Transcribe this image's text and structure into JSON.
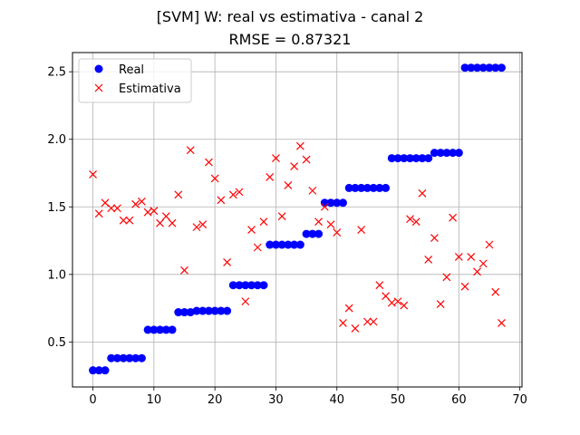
{
  "chart_data": {
    "type": "scatter",
    "title": "[SVM] W: real vs estimativa - canal 2",
    "subtitle": "RMSE = 0.87321",
    "xlabel": "",
    "ylabel": "",
    "xlim": [
      -3.35,
      70.35
    ],
    "ylim": [
      0.167,
      2.642
    ],
    "x_ticks": [
      0,
      10,
      20,
      30,
      40,
      50,
      60,
      70
    ],
    "y_ticks": [
      0.5,
      1.0,
      1.5,
      2.0,
      2.5
    ],
    "x_tick_labels": [
      "0",
      "10",
      "20",
      "30",
      "40",
      "50",
      "60",
      "70"
    ],
    "y_tick_labels": [
      "0.5",
      "1.0",
      "1.5",
      "2.0",
      "2.5"
    ],
    "grid": true,
    "legend_position": "top-left",
    "series": [
      {
        "name": "Real",
        "marker": "circle",
        "color": "#0000ff",
        "x": [
          0,
          1,
          2,
          3,
          4,
          5,
          6,
          7,
          8,
          9,
          10,
          11,
          12,
          13,
          14,
          15,
          16,
          17,
          18,
          19,
          20,
          21,
          22,
          23,
          24,
          25,
          26,
          27,
          28,
          29,
          30,
          31,
          32,
          33,
          34,
          35,
          36,
          37,
          38,
          39,
          40,
          41,
          42,
          43,
          44,
          45,
          46,
          47,
          48,
          49,
          50,
          51,
          52,
          53,
          54,
          55,
          56,
          57,
          58,
          59,
          60,
          61,
          62,
          63,
          64,
          65,
          66,
          67
        ],
        "values": [
          0.29,
          0.29,
          0.29,
          0.38,
          0.38,
          0.38,
          0.38,
          0.38,
          0.38,
          0.59,
          0.59,
          0.59,
          0.59,
          0.59,
          0.72,
          0.72,
          0.72,
          0.73,
          0.73,
          0.73,
          0.73,
          0.73,
          0.73,
          0.92,
          0.92,
          0.92,
          0.92,
          0.92,
          0.92,
          1.22,
          1.22,
          1.22,
          1.22,
          1.22,
          1.22,
          1.3,
          1.3,
          1.3,
          1.53,
          1.53,
          1.53,
          1.53,
          1.64,
          1.64,
          1.64,
          1.64,
          1.64,
          1.64,
          1.64,
          1.86,
          1.86,
          1.86,
          1.86,
          1.86,
          1.86,
          1.86,
          1.9,
          1.9,
          1.9,
          1.9,
          1.9,
          2.53,
          2.53,
          2.53,
          2.53,
          2.53,
          2.53,
          2.53
        ]
      },
      {
        "name": "Estimativa",
        "marker": "x",
        "color": "#ff0000",
        "x": [
          0,
          1,
          2,
          3,
          4,
          5,
          6,
          7,
          8,
          9,
          10,
          11,
          12,
          13,
          14,
          15,
          16,
          17,
          18,
          19,
          20,
          21,
          22,
          23,
          24,
          25,
          26,
          27,
          28,
          29,
          30,
          31,
          32,
          33,
          34,
          35,
          36,
          37,
          38,
          39,
          40,
          41,
          42,
          43,
          44,
          45,
          46,
          47,
          48,
          49,
          50,
          51,
          52,
          53,
          54,
          55,
          56,
          57,
          58,
          59,
          60,
          61,
          62,
          63,
          64,
          65,
          66,
          67
        ],
        "values": [
          1.74,
          1.45,
          1.53,
          1.49,
          1.49,
          1.4,
          1.4,
          1.52,
          1.54,
          1.46,
          1.47,
          1.38,
          1.43,
          1.38,
          1.59,
          1.03,
          1.92,
          1.35,
          1.37,
          1.83,
          1.71,
          1.55,
          1.09,
          1.59,
          1.61,
          0.8,
          1.33,
          1.2,
          1.39,
          1.72,
          1.86,
          1.43,
          1.66,
          1.8,
          1.95,
          1.85,
          1.62,
          1.39,
          1.5,
          1.37,
          1.31,
          0.64,
          0.75,
          0.6,
          1.33,
          0.65,
          0.65,
          0.92,
          0.84,
          0.79,
          0.8,
          0.77,
          1.41,
          1.39,
          1.6,
          1.11,
          1.27,
          0.78,
          0.98,
          1.42,
          1.13,
          0.91,
          1.13,
          1.02,
          1.08,
          1.22,
          0.87,
          0.64
        ]
      }
    ]
  }
}
